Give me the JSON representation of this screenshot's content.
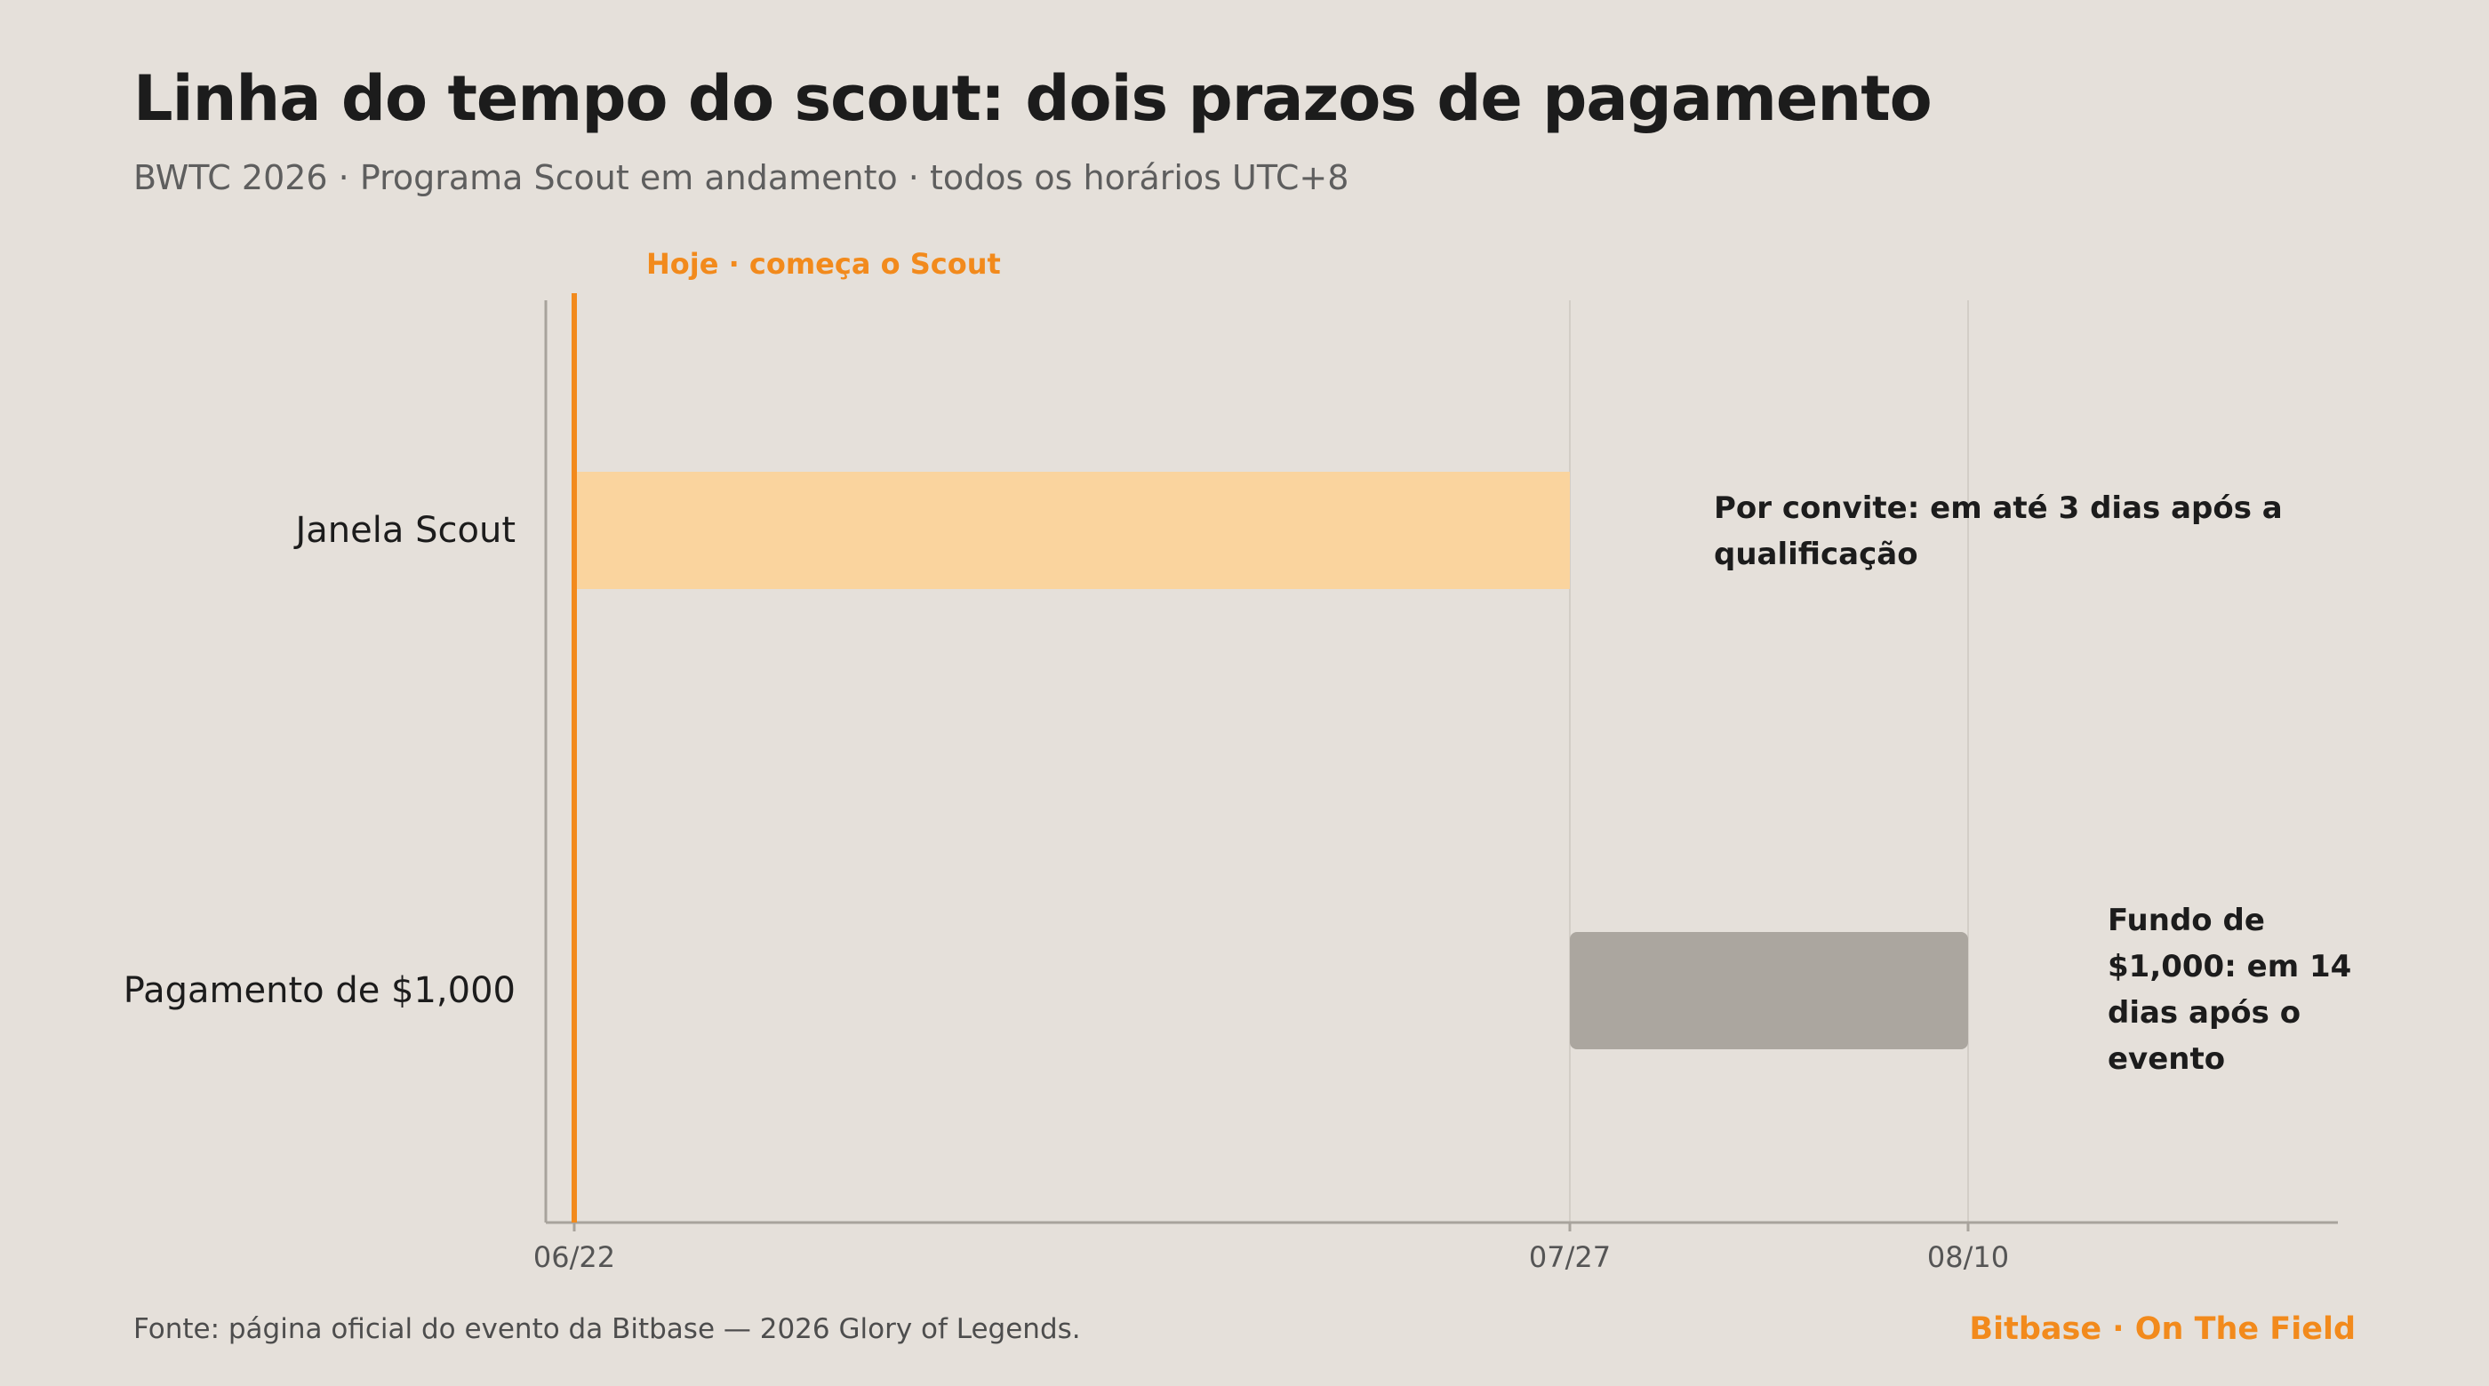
{
  "header": {
    "title": "Linha do tempo do scout: dois prazos de pagamento",
    "subtitle": "BWTC 2026 · Programa Scout em andamento · todos os horários UTC+8"
  },
  "chart_data": {
    "type": "gantt",
    "x_axis": {
      "type": "date",
      "range": [
        "2026-06-21",
        "2026-08-23"
      ],
      "ticks": [
        {
          "date": "2026-06-22",
          "label": "06/22"
        },
        {
          "date": "2026-07-27",
          "label": "07/27"
        },
        {
          "date": "2026-08-10",
          "label": "08/10"
        }
      ],
      "grid": true
    },
    "rows": [
      {
        "label": "Janela Scout",
        "start": "2026-06-22",
        "end": "2026-07-27",
        "color": "#fad49e",
        "annotation": "Por convite: em até 3 dias após a qualificação"
      },
      {
        "label": "Pagamento de $1,000",
        "start": "2026-07-27",
        "end": "2026-08-10",
        "color": "#aba69f",
        "annotation": "Fundo de $1,000: em 14 dias após o evento"
      }
    ],
    "today_marker": {
      "date": "2026-06-22",
      "label": "Hoje · começa o Scout",
      "color": "#f28a1c"
    }
  },
  "footer": {
    "source": "Fonte: página oficial do evento da Bitbase — 2026 Glory of Legends.",
    "brand": "Bitbase · On The Field"
  }
}
